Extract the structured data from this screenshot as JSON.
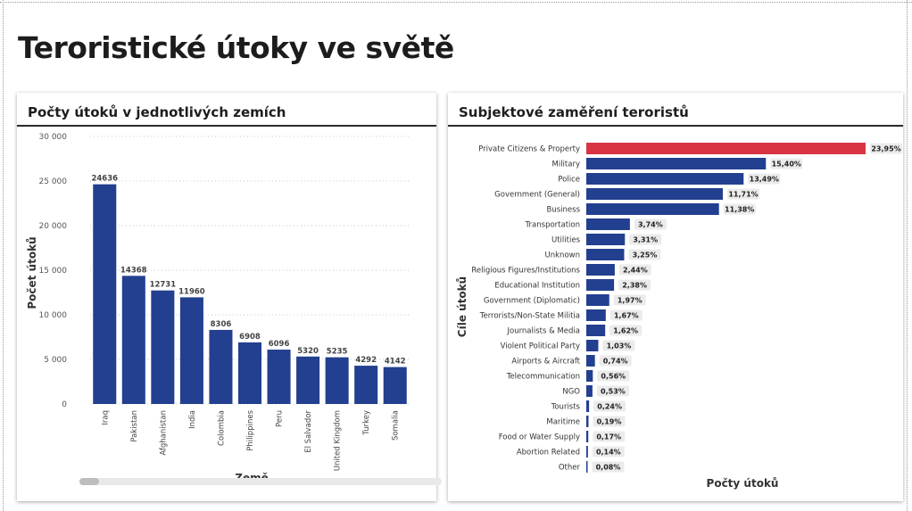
{
  "page": {
    "title": "Teroristické útoky ve světě"
  },
  "colors": {
    "bar": "#233f8f",
    "highlight": "#d93444",
    "pillBg": "#ebebeb",
    "grid": "#c8c8c8"
  },
  "chart_data": [
    {
      "type": "bar",
      "title": "Počty útoků v jednotlivých zemích",
      "xlabel": "Země",
      "ylabel": "Počet útoků",
      "ylim": [
        0,
        30000
      ],
      "yticks": [
        0,
        5000,
        10000,
        15000,
        20000,
        25000,
        30000
      ],
      "ytick_labels": [
        "0",
        "5 000",
        "10 000",
        "15 000",
        "20 000",
        "25 000",
        "30 000"
      ],
      "categories": [
        "Iraq",
        "Pakistan",
        "Afghanistan",
        "India",
        "Colombia",
        "Philippines",
        "Peru",
        "El Salvador",
        "United Kingdom",
        "Turkey",
        "Somalia"
      ],
      "values": [
        24636,
        14368,
        12731,
        11960,
        8306,
        6908,
        6096,
        5320,
        5235,
        4292,
        4142
      ]
    },
    {
      "type": "bar",
      "orientation": "horizontal",
      "title": "Subjektové zaměření teroristů",
      "xlabel": "Počty útoků",
      "ylabel": "Cíle útoků",
      "xlim": [
        0,
        23.95
      ],
      "categories": [
        "Private Citizens & Property",
        "Military",
        "Police",
        "Government (General)",
        "Business",
        "Transportation",
        "Utilities",
        "Unknown",
        "Religious Figures/Institutions",
        "Educational Institution",
        "Government (Diplomatic)",
        "Terrorists/Non-State Militia",
        "Journalists & Media",
        "Violent Political Party",
        "Airports & Aircraft",
        "Telecommunication",
        "NGO",
        "Tourists",
        "Maritime",
        "Food or Water Supply",
        "Abortion Related",
        "Other"
      ],
      "values": [
        23.95,
        15.4,
        13.49,
        11.71,
        11.38,
        3.74,
        3.31,
        3.25,
        2.44,
        2.38,
        1.97,
        1.67,
        1.62,
        1.03,
        0.74,
        0.56,
        0.53,
        0.24,
        0.19,
        0.17,
        0.14,
        0.08
      ],
      "value_labels": [
        "23,95%",
        "15,40%",
        "13,49%",
        "11,71%",
        "11,38%",
        "3,74%",
        "3,31%",
        "3,25%",
        "2,44%",
        "2,38%",
        "1,97%",
        "1,67%",
        "1,62%",
        "1,03%",
        "0,74%",
        "0,56%",
        "0,53%",
        "0,24%",
        "0,19%",
        "0,17%",
        "0,14%",
        "0,08%"
      ],
      "highlight_index": 0
    }
  ]
}
